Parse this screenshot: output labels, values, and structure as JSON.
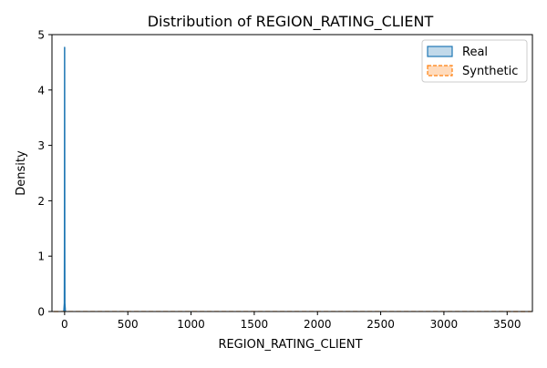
{
  "chart_data": {
    "type": "area",
    "title": "Distribution of REGION_RATING_CLIENT",
    "xlabel": "REGION_RATING_CLIENT",
    "ylabel": "Density",
    "xlim": [
      -100,
      3700
    ],
    "ylim": [
      0,
      5
    ],
    "xticks": [
      0,
      500,
      1000,
      1500,
      2000,
      2500,
      3000,
      3500
    ],
    "yticks": [
      0,
      1,
      2,
      3,
      4,
      5
    ],
    "grid": false,
    "legend_position": "top-right",
    "series": [
      {
        "name": "Real",
        "color": "#1f77b4",
        "line_style": "solid",
        "x": [
          -6,
          -2,
          -1,
          0,
          1,
          2,
          6
        ],
        "y": [
          0,
          0.15,
          1.2,
          4.77,
          1.2,
          0.15,
          0
        ]
      },
      {
        "name": "Synthetic",
        "color": "#ff7f0e",
        "line_style": "dashed",
        "x": [
          -85,
          0,
          500,
          1000,
          1500,
          2000,
          2500,
          3000,
          3500,
          3690
        ],
        "y": [
          0,
          0.0012,
          0.0009,
          0.0008,
          0.0008,
          0.0008,
          0.0008,
          0.0008,
          0.0007,
          0
        ]
      }
    ]
  }
}
